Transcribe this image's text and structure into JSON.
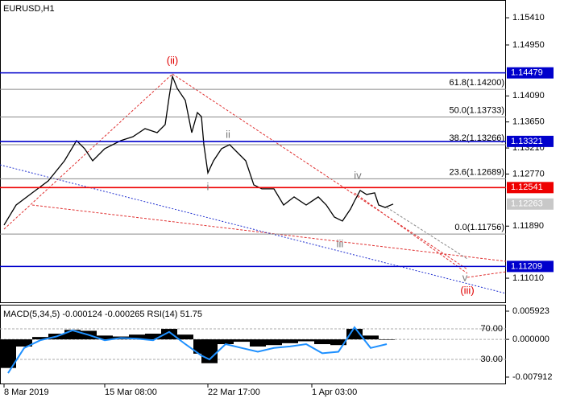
{
  "chart_data": [
    {
      "type": "line",
      "title": "EURUSD,H1",
      "x": [
        5,
        20,
        40,
        60,
        80,
        95,
        105,
        115,
        130,
        150,
        165,
        180,
        195,
        205,
        210,
        214,
        220,
        230,
        238,
        245,
        250,
        253,
        258,
        265,
        275,
        285,
        295,
        305,
        315,
        325,
        340,
        352,
        365,
        380,
        395,
        405,
        415,
        425,
        435,
        440,
        447,
        455,
        465,
        470,
        478,
        488
      ],
      "values": [
        1.11908,
        1.12247,
        1.12451,
        1.12655,
        1.12994,
        1.13334,
        1.13198,
        1.12994,
        1.13198,
        1.13334,
        1.13401,
        1.13537,
        1.13469,
        1.13605,
        1.1408,
        1.1442,
        1.14216,
        1.14013,
        1.13469,
        1.13809,
        1.13741,
        1.13266,
        1.1279,
        1.12994,
        1.13198,
        1.13266,
        1.1313,
        1.12994,
        1.12587,
        1.12519,
        1.12519,
        1.12247,
        1.12383,
        1.12247,
        1.12383,
        1.12247,
        1.12043,
        1.11976,
        1.12179,
        1.12315,
        1.12492,
        1.12424,
        1.12451,
        1.12247,
        1.12206,
        1.12263
      ],
      "color": "#000000",
      "xlim": [
        0,
        628
      ],
      "ylim": [
        1.10603,
        1.1571
      ],
      "xticks": [
        {
          "value": 5,
          "label": "8 Mar 2019"
        },
        {
          "value": 130,
          "label": "15 Mar 08:00"
        },
        {
          "value": 258,
          "label": "22 Mar 17:00"
        },
        {
          "value": 387,
          "label": "1 Apr 03:00"
        }
      ],
      "yticks": [
        {
          "value": 1.1541,
          "label": "1.15410"
        },
        {
          "value": 1.1495,
          "label": "1.14950"
        },
        {
          "value": 1.1409,
          "label": "1.14090"
        },
        {
          "value": 1.1365,
          "label": "1.13650"
        },
        {
          "value": 1.1321,
          "label": "1.13210"
        },
        {
          "value": 1.1277,
          "label": "1.12770"
        },
        {
          "value": 1.1189,
          "label": "1.11890"
        },
        {
          "value": 1.1101,
          "label": "1.11010"
        }
      ],
      "fibo": [
        {
          "value": 1.142,
          "label": "61.8(1.14200)"
        },
        {
          "value": 1.13733,
          "label": "50.0(1.13733)"
        },
        {
          "value": 1.13266,
          "label": "38.2(1.13266)"
        },
        {
          "value": 1.12689,
          "label": "23.6(1.12689)"
        },
        {
          "value": 1.11756,
          "label": "0.0(1.11756)"
        }
      ],
      "levels": [
        {
          "value": 1.14479,
          "color": "#0000cc"
        },
        {
          "value": 1.13321,
          "color": "#0000cc"
        },
        {
          "value": 1.12541,
          "color": "#ee0000"
        },
        {
          "value": 1.11209,
          "color": "#0000cc"
        }
      ],
      "current": 1.12263,
      "annotations": [
        "(ii)",
        "i",
        "ii",
        "iii",
        "iv",
        "v",
        "(iii)"
      ]
    },
    {
      "type": "macd",
      "title": "MACD(5,34,5) -0.000124 -0.000265 RSI(14) 51.75",
      "x": [
        10,
        30,
        50,
        70,
        90,
        110,
        130,
        150,
        170,
        190,
        210,
        230,
        250,
        260,
        280,
        300,
        320,
        340,
        360,
        380,
        400,
        420,
        440,
        460,
        480
      ],
      "values": [
        -0.006,
        -0.0015,
        0.0005,
        0.0012,
        0.002,
        0.0018,
        0.0008,
        0.0006,
        0.001,
        0.0012,
        0.0022,
        0.001,
        -0.003,
        -0.005,
        -0.001,
        -0.0005,
        -0.0015,
        -0.0012,
        -0.0008,
        -0.0004,
        -0.001,
        -0.0012,
        0.0022,
        0.0008,
        -0.0001
      ],
      "color": "#000000",
      "rsi": {
        "values": [
          12,
          45,
          55,
          60,
          68,
          62,
          55,
          58,
          57,
          55,
          66,
          50,
          35,
          30,
          50,
          45,
          40,
          45,
          47,
          50,
          38,
          40,
          72,
          45,
          50
        ],
        "color": "#1e90ff",
        "axis": "y2"
      },
      "xlim": [
        0,
        628
      ],
      "ylim": [
        -0.00943,
        0.007104
      ],
      "y2lim": [
        -2.6,
        100.5
      ],
      "yticks": [
        0.005923,
        {
          "value": 0,
          "label": "0.000000"
        },
        -0.007912
      ],
      "y2ticks": [
        {
          "value": 70,
          "label": "70.00"
        },
        {
          "value": 30,
          "label": "30.00"
        }
      ]
    }
  ]
}
